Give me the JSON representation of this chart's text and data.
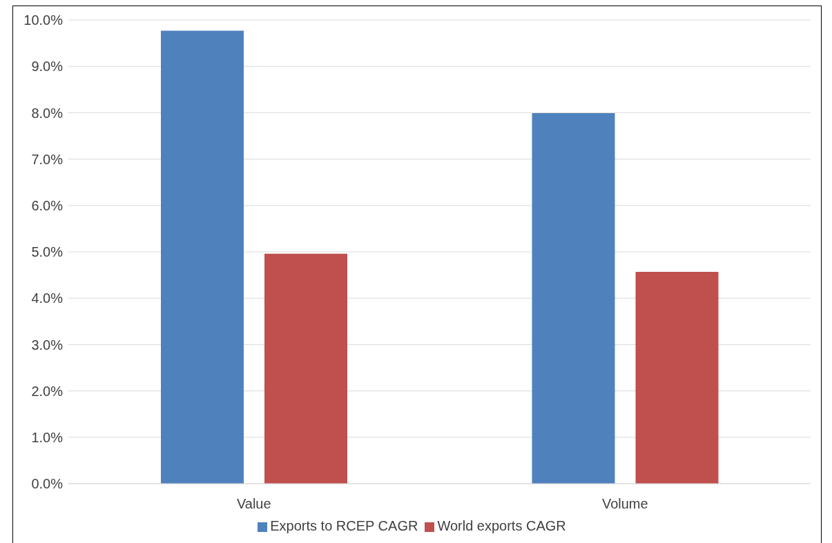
{
  "chart_data": {
    "type": "bar",
    "categories": [
      "Value",
      "Volume"
    ],
    "series": [
      {
        "name": "Exports to RCEP CAGR",
        "color": "#4f81bd",
        "values": [
          9.77,
          7.99
        ]
      },
      {
        "name": "World exports CAGR",
        "color": "#c0504d",
        "values": [
          4.96,
          4.57
        ]
      }
    ],
    "ylim": [
      0,
      10
    ],
    "yticks": [
      {
        "value": 0,
        "label": "0.0%"
      },
      {
        "value": 1,
        "label": "1.0%"
      },
      {
        "value": 2,
        "label": "2.0%"
      },
      {
        "value": 3,
        "label": "3.0%"
      },
      {
        "value": 4,
        "label": "4.0%"
      },
      {
        "value": 5,
        "label": "5.0%"
      },
      {
        "value": 6,
        "label": "6.0%"
      },
      {
        "value": 7,
        "label": "7.0%"
      },
      {
        "value": 8,
        "label": "8.0%"
      },
      {
        "value": 9,
        "label": "9.0%"
      },
      {
        "value": 10,
        "label": "10.0%"
      }
    ],
    "grid": "y",
    "legend": "bottom"
  }
}
